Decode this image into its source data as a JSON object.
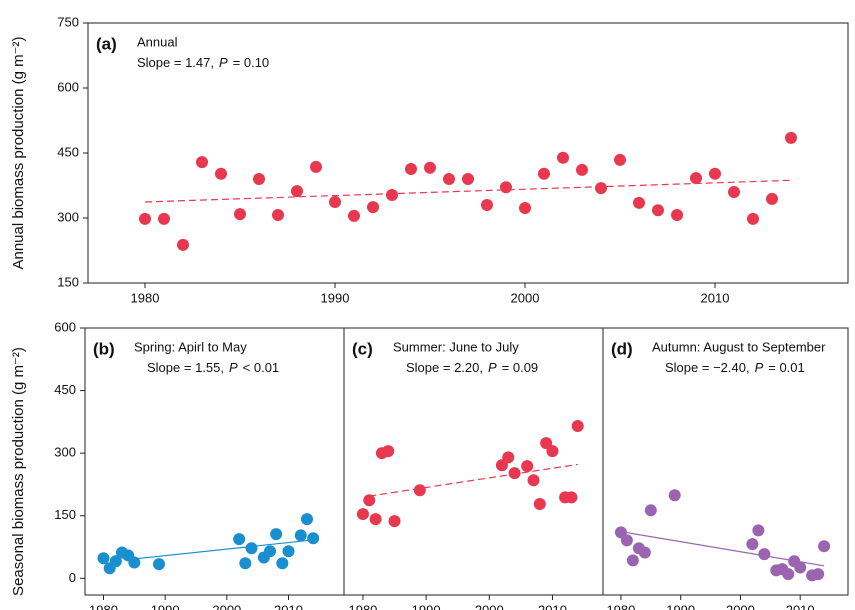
{
  "chart_data": [
    {
      "type": "scatter",
      "panel_label": "(a)",
      "subtitle": "Annual",
      "annotation": [
        "Slope = 1.47,",
        "P",
        "= 0.10"
      ],
      "y_label": "Annual biomass production (g m⁻²)",
      "x": [
        1980,
        1981,
        1982,
        1983,
        1984,
        1985,
        1986,
        1987,
        1988,
        1989,
        1990,
        1991,
        1992,
        1993,
        1994,
        1995,
        1996,
        1997,
        1998,
        1999,
        2000,
        2001,
        2002,
        2003,
        2004,
        2005,
        2006,
        2007,
        2008,
        2009,
        2010,
        2011,
        2012,
        2013,
        2014
      ],
      "series": [
        {
          "color": "#e8384f",
          "values": [
            298,
            298,
            238,
            429,
            402,
            309,
            390,
            307,
            362,
            418,
            337,
            305,
            325,
            353,
            413,
            416,
            390,
            390,
            330,
            371,
            323,
            402,
            439,
            411,
            369,
            434,
            335,
            318,
            307,
            392,
            402,
            360,
            298,
            344,
            485
          ]
        }
      ],
      "fit": {
        "x": [
          1980,
          2014
        ],
        "values": [
          337,
          387
        ],
        "dashed": true,
        "color": "#e8384f"
      },
      "xlim": [
        1977,
        2017
      ],
      "ylim": [
        150,
        750
      ],
      "xticks": [
        1980,
        1990,
        2000,
        2010
      ],
      "yticks": [
        150,
        300,
        450,
        600,
        750
      ]
    },
    {
      "type": "scatter",
      "panel_label": "(b)",
      "subtitle": "Spring: Apirl to May",
      "annotation": [
        "Slope = 1.55,",
        "P",
        "< 0.01"
      ],
      "y_label": "Seasonal biomass production (g m⁻²)",
      "x": [
        1980,
        1981,
        1982,
        1983,
        1984,
        1985,
        1989,
        2002,
        2003,
        2004,
        2006,
        2007,
        2008,
        2009,
        2010,
        2012,
        2013,
        2014
      ],
      "series": [
        {
          "color": "#1a8fd0",
          "values": [
            48,
            24,
            41,
            62,
            55,
            38,
            34,
            94,
            36,
            72,
            50,
            65,
            106,
            36,
            65,
            103,
            142,
            96
          ]
        }
      ],
      "fit": {
        "x": [
          1984,
          2014
        ],
        "values": [
          45,
          92
        ],
        "dashed": false,
        "color": "#1a8fd0"
      },
      "xlim": [
        1977,
        2019
      ],
      "ylim": [
        -40,
        600
      ],
      "xticks": [
        1980,
        1990,
        2000,
        2010
      ],
      "yticks": [
        0,
        150,
        300,
        450,
        600
      ]
    },
    {
      "type": "scatter",
      "panel_label": "(c)",
      "subtitle": "Summer: June to July",
      "annotation": [
        "Slope = 2.20,",
        "P",
        "= 0.09"
      ],
      "x": [
        1980,
        1981,
        1982,
        1983,
        1984,
        1985,
        1989,
        2002,
        2003,
        2004,
        2006,
        2007,
        2008,
        2009,
        2010,
        2012,
        2013,
        2014
      ],
      "series": [
        {
          "color": "#e8384f",
          "values": [
            154,
            187,
            142,
            300,
            305,
            137,
            211,
            271,
            290,
            252,
            269,
            235,
            178,
            324,
            305,
            194,
            194,
            365
          ]
        }
      ],
      "fit": {
        "x": [
          1981,
          2014
        ],
        "values": [
          197,
          273
        ],
        "dashed": true,
        "color": "#e8384f"
      },
      "xlim": [
        1977,
        2018
      ],
      "ylim": [
        -40,
        600
      ],
      "xticks": [
        1980,
        1990,
        2000,
        2010
      ]
    },
    {
      "type": "scatter",
      "panel_label": "(d)",
      "subtitle": "Autumn: August to September",
      "annotation": [
        "Slope = −2.40,",
        "P",
        "= 0.01"
      ],
      "x": [
        1980,
        1981,
        1982,
        1983,
        1984,
        1985,
        1989,
        2002,
        2003,
        2004,
        2006,
        2007,
        2008,
        2009,
        2010,
        2012,
        2013,
        2014
      ],
      "series": [
        {
          "color": "#9b64b0",
          "values": [
            110,
            91,
            43,
            72,
            62,
            163,
            199,
            82,
            115,
            58,
            19,
            22,
            10,
            41,
            26,
            7,
            10,
            77
          ]
        }
      ],
      "fit": {
        "x": [
          1980,
          2014
        ],
        "values": [
          112,
          30
        ],
        "dashed": false,
        "color": "#9b64b0"
      },
      "xlim": [
        1977,
        2018
      ],
      "ylim": [
        -40,
        600
      ],
      "xticks": [
        1980,
        1990,
        2000,
        2010
      ]
    }
  ]
}
